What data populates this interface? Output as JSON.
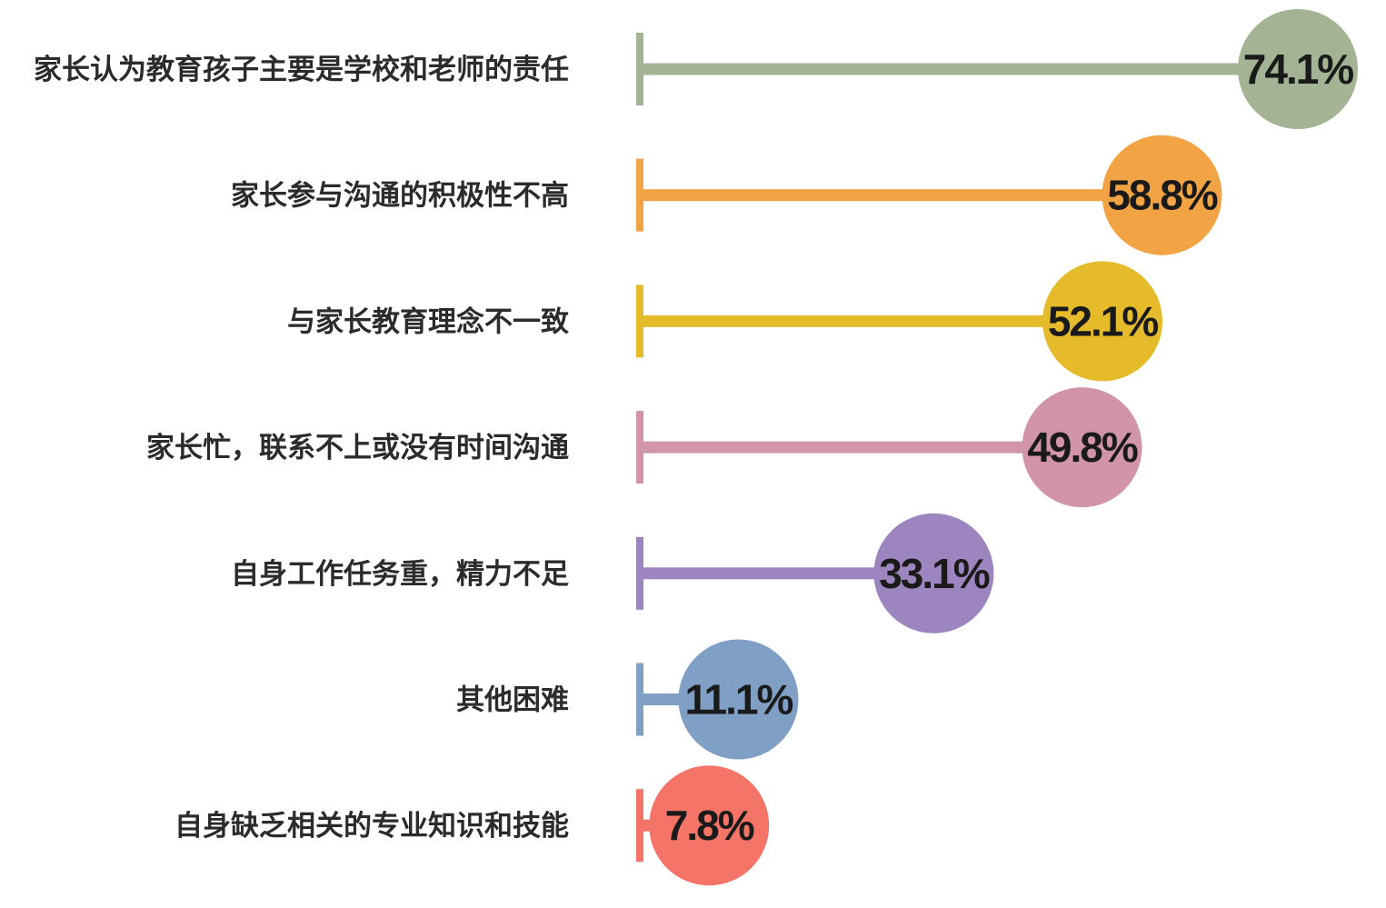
{
  "chart_data": {
    "type": "bar",
    "orientation": "horizontal",
    "title": "",
    "xlabel": "",
    "ylabel": "",
    "xlim": [
      0,
      74.1
    ],
    "grid": false,
    "legend": "none",
    "value_suffix": "%",
    "categories": [
      "家长认为教育孩子主要是学校和老师的责任",
      "家长参与沟通的积极性不高",
      "与家长教育理念不一致",
      "家长忙，联系不上或没有时间沟通",
      "自身工作任务重，精力不足",
      "其他困难",
      "自身缺乏相关的专业知识和技能"
    ],
    "values": [
      74.1,
      58.8,
      52.1,
      49.8,
      33.1,
      11.1,
      7.8
    ],
    "value_labels": [
      "74.1%",
      "58.8%",
      "52.1%",
      "49.8%",
      "33.1%",
      "11.1%",
      "7.8%"
    ],
    "colors": [
      "#a4b393",
      "#f2a444",
      "#e5bb2c",
      "#d195a7",
      "#9d86c0",
      "#7f9fc4",
      "#f57468"
    ]
  }
}
